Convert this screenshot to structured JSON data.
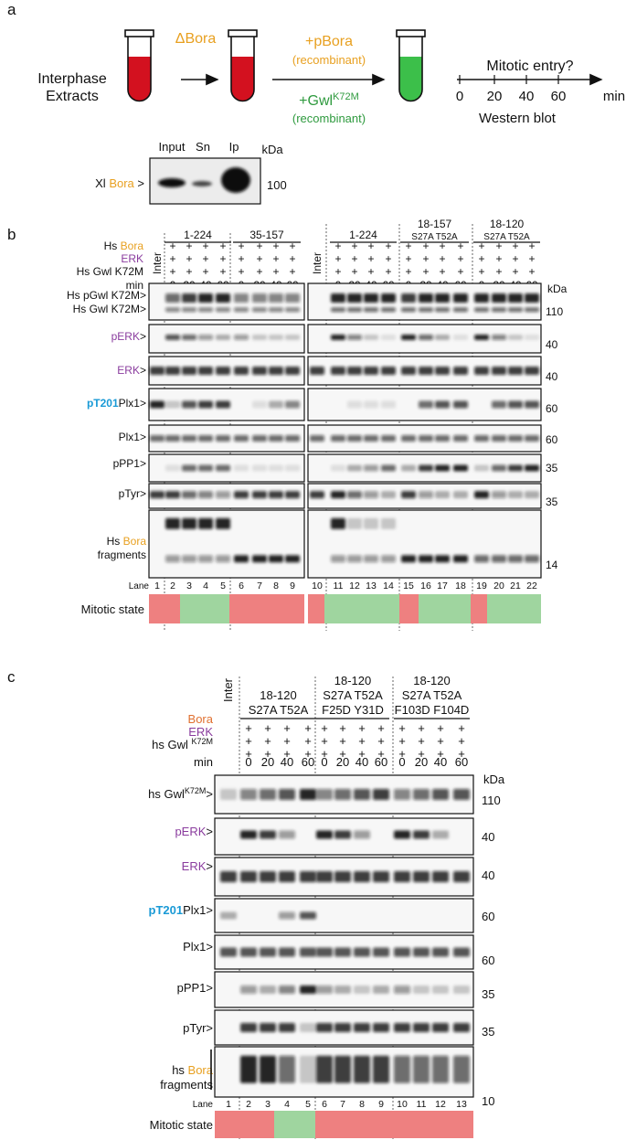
{
  "panel_a": {
    "label": "a",
    "extract": [
      [
        {
          "text": "Interphase"
        }
      ],
      [
        {
          "text": "Extracts"
        }
      ]
    ],
    "depletion": [
      {
        "text": "ΔBora",
        "color": "#e8a020"
      }
    ],
    "add_bora": [
      {
        "text": "+pBora",
        "color": "#e8a020"
      }
    ],
    "add_bora_note": [
      {
        "text": "(recombinant)",
        "color": "#e8a020"
      }
    ],
    "add_gwl": [
      {
        "text": "+Gwl",
        "color": "#2e9a3e"
      },
      {
        "text": "K72M",
        "color": "#2e9a3e",
        "sup": true
      }
    ],
    "add_gwl_note": [
      {
        "text": "(recombinant)",
        "color": "#2e9a3e"
      }
    ],
    "question": "Mitotic entry?",
    "timeline_ticks": [
      "0",
      "20",
      "40",
      "60"
    ],
    "timeline_unit": "min",
    "readout": "Western blot",
    "blot": {
      "columns": [
        "Input",
        "Sn",
        "Ip"
      ],
      "unit": "kDa",
      "row": [
        {
          "text": "Xl "
        },
        {
          "text": "Bora",
          "color": "#e8a020"
        },
        {
          "text": " >"
        }
      ],
      "marker": "100"
    }
  },
  "panel_b": {
    "label": "b",
    "conditions": [
      [
        {
          "text": "Hs "
        },
        {
          "text": "Bora",
          "color": "#e8a020"
        }
      ],
      [
        {
          "text": "ERK",
          "color": "#8a3c9e"
        }
      ],
      [
        {
          "text": "Hs Gwl K72M"
        }
      ],
      [
        {
          "text": "min"
        }
      ]
    ],
    "inter": "Inter",
    "plus": "+",
    "times": [
      "0",
      "20",
      "40",
      "60"
    ],
    "groups": [
      [
        "1-224"
      ],
      [
        "35-157"
      ],
      [
        "1-224"
      ],
      [
        "18-157",
        "S27A T52A"
      ],
      [
        "18-120",
        "S27A T52A"
      ]
    ],
    "unit": "kDa",
    "rows": [
      {
        "label": [
          [
            {
              "text": "Hs pGwl K72M>"
            }
          ],
          [
            {
              "text": "Hs Gwl K72M>"
            }
          ]
        ],
        "marker": "110"
      },
      {
        "label": [
          [
            {
              "text": "pERK",
              "color": "#8a3c9e"
            },
            {
              "text": ">"
            }
          ]
        ],
        "marker": "40"
      },
      {
        "label": [
          [
            {
              "text": "ERK",
              "color": "#8a3c9e"
            },
            {
              "text": ">"
            }
          ]
        ],
        "marker": "40"
      },
      {
        "label": [
          [
            {
              "text": "pT201",
              "color": "#1a9ad6",
              "bold": true
            },
            {
              "text": "Plx1>"
            }
          ]
        ],
        "marker": "60"
      },
      {
        "label": [
          [
            {
              "text": "Plx1>"
            }
          ]
        ],
        "marker": "60"
      },
      {
        "label": [
          [
            {
              "text": "pPP1>"
            }
          ]
        ],
        "marker": "35"
      },
      {
        "label": [
          [
            {
              "text": "pTyr>"
            }
          ]
        ],
        "marker": "35"
      },
      {
        "label": [
          [
            {
              "text": "Hs "
            },
            {
              "text": "Bora",
              "color": "#e8a020"
            }
          ],
          [
            {
              "text": "fragments"
            }
          ]
        ],
        "marker": "14"
      }
    ],
    "lane_title": "Lane",
    "lanes": [
      "1",
      "2",
      "3",
      "4",
      "5",
      "6",
      "7",
      "8",
      "9",
      "10",
      "11",
      "12",
      "13",
      "14",
      "15",
      "16",
      "17",
      "18",
      "19",
      "20",
      "21",
      "22"
    ],
    "state_title": "Mitotic state"
  },
  "panel_c": {
    "label": "c",
    "conditions": [
      [
        {
          "text": "Bora",
          "color": "#e07030"
        }
      ],
      [
        {
          "text": "ERK",
          "color": "#8a3c9e"
        }
      ],
      [
        {
          "text": "hs Gwl "
        },
        {
          "text": "K72M",
          "sup": true
        }
      ],
      [
        {
          "text": "min"
        }
      ]
    ],
    "inter": "Inter",
    "plus": "+",
    "times": [
      "0",
      "20",
      "40",
      "60"
    ],
    "groups": [
      [
        "18-120",
        "S27A T52A"
      ],
      [
        "18-120",
        "S27A T52A",
        "F25D Y31D"
      ],
      [
        "18-120",
        "S27A T52A",
        "F103D F104D"
      ]
    ],
    "unit": "kDa",
    "rows": [
      {
        "label": [
          [
            {
              "text": "hs Gwl"
            },
            {
              "text": "K72M",
              "sup": true
            },
            {
              "text": ">"
            }
          ]
        ],
        "marker": "110"
      },
      {
        "label": [
          [
            {
              "text": "pERK",
              "color": "#8a3c9e"
            },
            {
              "text": ">"
            }
          ]
        ],
        "marker": "40"
      },
      {
        "label": [
          [
            {
              "text": "ERK",
              "color": "#8a3c9e"
            },
            {
              "text": ">"
            }
          ]
        ],
        "marker": "40"
      },
      {
        "label": [
          [
            {
              "text": "pT201",
              "color": "#1a9ad6",
              "bold": true
            },
            {
              "text": "Plx1>"
            }
          ]
        ],
        "marker": "60"
      },
      {
        "label": [
          [
            {
              "text": "Plx1>"
            }
          ]
        ],
        "marker": "60"
      },
      {
        "label": [
          [
            {
              "text": "pPP1>"
            }
          ]
        ],
        "marker": "35"
      },
      {
        "label": [
          [
            {
              "text": "pTyr>"
            }
          ]
        ],
        "marker": "35"
      },
      {
        "label": [
          [
            {
              "text": "hs "
            },
            {
              "text": "Bora",
              "color": "#e8a020"
            }
          ],
          [
            {
              "text": "fragments"
            }
          ]
        ],
        "marker": "10"
      }
    ],
    "lane_title": "Lane",
    "lanes": [
      "1",
      "2",
      "3",
      "4",
      "5",
      "6",
      "7",
      "8",
      "9",
      "10",
      "11",
      "12",
      "13"
    ],
    "state_title": "Mitotic state"
  }
}
